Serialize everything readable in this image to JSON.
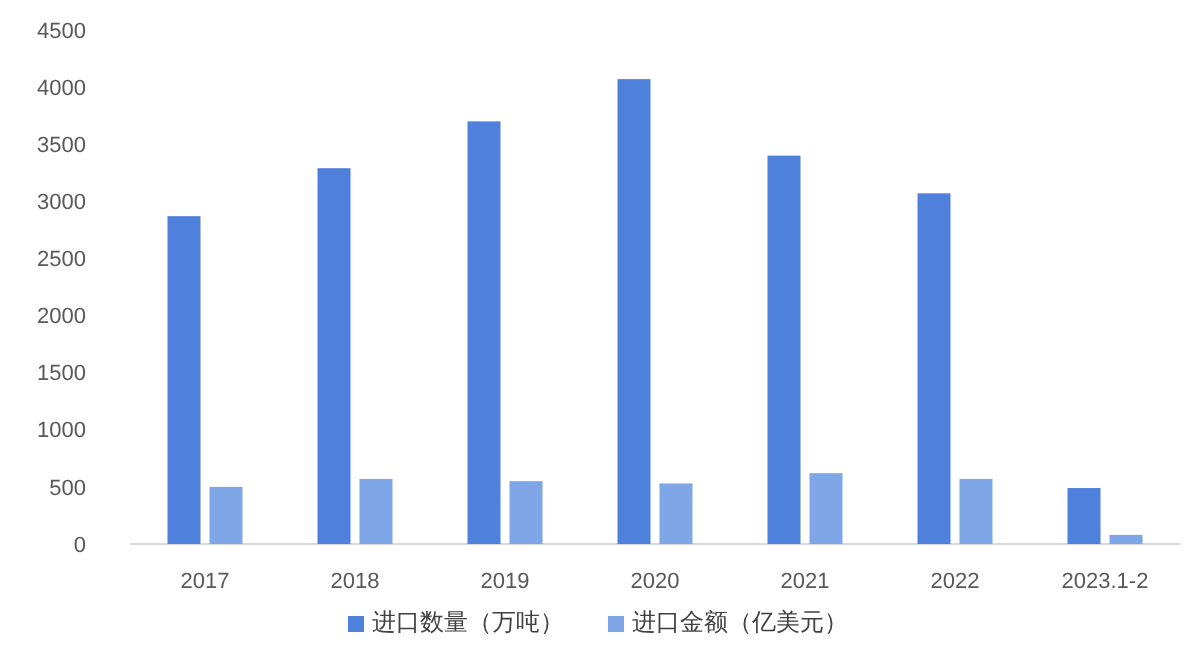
{
  "chart_data": {
    "type": "bar",
    "categories": [
      "2017",
      "2018",
      "2019",
      "2020",
      "2021",
      "2022",
      "2023.1-2"
    ],
    "series": [
      {
        "name": "进口数量（万吨）",
        "color": "#4f81dc",
        "values": [
          2870,
          3290,
          3700,
          4070,
          3400,
          3070,
          490
        ]
      },
      {
        "name": "进口金额（亿美元）",
        "color": "#7fa6e6",
        "values": [
          500,
          570,
          550,
          530,
          620,
          570,
          80
        ]
      }
    ],
    "ylim": [
      0,
      4500
    ],
    "yticks": [
      0,
      500,
      1000,
      1500,
      2000,
      2500,
      3000,
      3500,
      4000,
      4500
    ],
    "grid": false,
    "legend": "bottom"
  }
}
